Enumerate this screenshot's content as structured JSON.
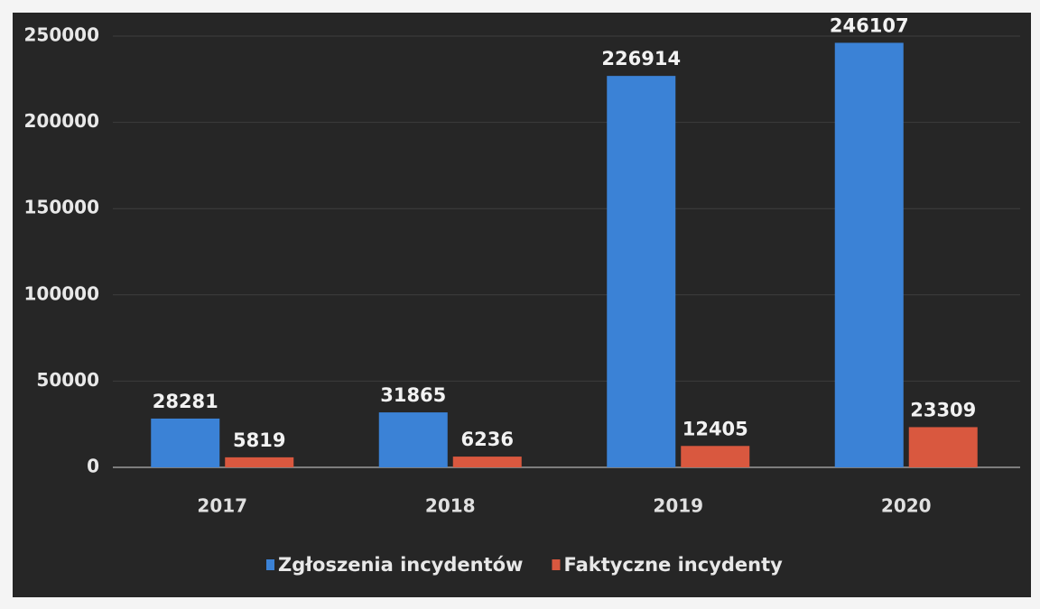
{
  "chart_data": {
    "type": "bar",
    "categories": [
      "2017",
      "2018",
      "2019",
      "2020"
    ],
    "series": [
      {
        "name": "Zgłoszenia incydentów",
        "color": "#3b82d6",
        "values": [
          28281,
          31865,
          226914,
          246107
        ]
      },
      {
        "name": "Faktyczne incydenty",
        "color": "#d9583f",
        "values": [
          5819,
          6236,
          12405,
          23309
        ]
      }
    ],
    "ylim": [
      0,
      250000
    ],
    "yticks": [
      0,
      50000,
      100000,
      150000,
      200000,
      250000
    ],
    "grid": true,
    "legend": "bottom"
  }
}
